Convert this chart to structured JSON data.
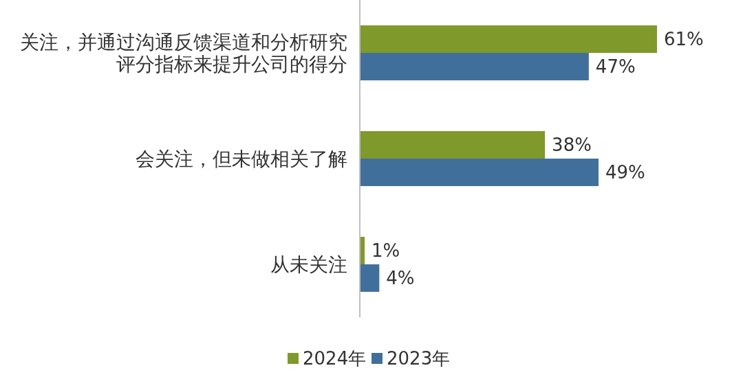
{
  "chart_data": {
    "type": "bar",
    "orientation": "horizontal",
    "legend": "bottom",
    "categories": [
      "关注，并通过沟通反馈渠道和分析研究评分指标来提升公司的得分",
      "会关注，但未做相关了解",
      "从未关注"
    ],
    "series": [
      {
        "name": "2024年",
        "color": "#7f992b",
        "values": [
          61,
          38,
          1
        ],
        "value_labels": [
          "61%",
          "38%",
          "1%"
        ]
      },
      {
        "name": "2023年",
        "color": "#416f9c",
        "values": [
          47,
          49,
          4
        ],
        "value_labels": [
          "47%",
          "49%",
          "4%"
        ]
      }
    ]
  }
}
